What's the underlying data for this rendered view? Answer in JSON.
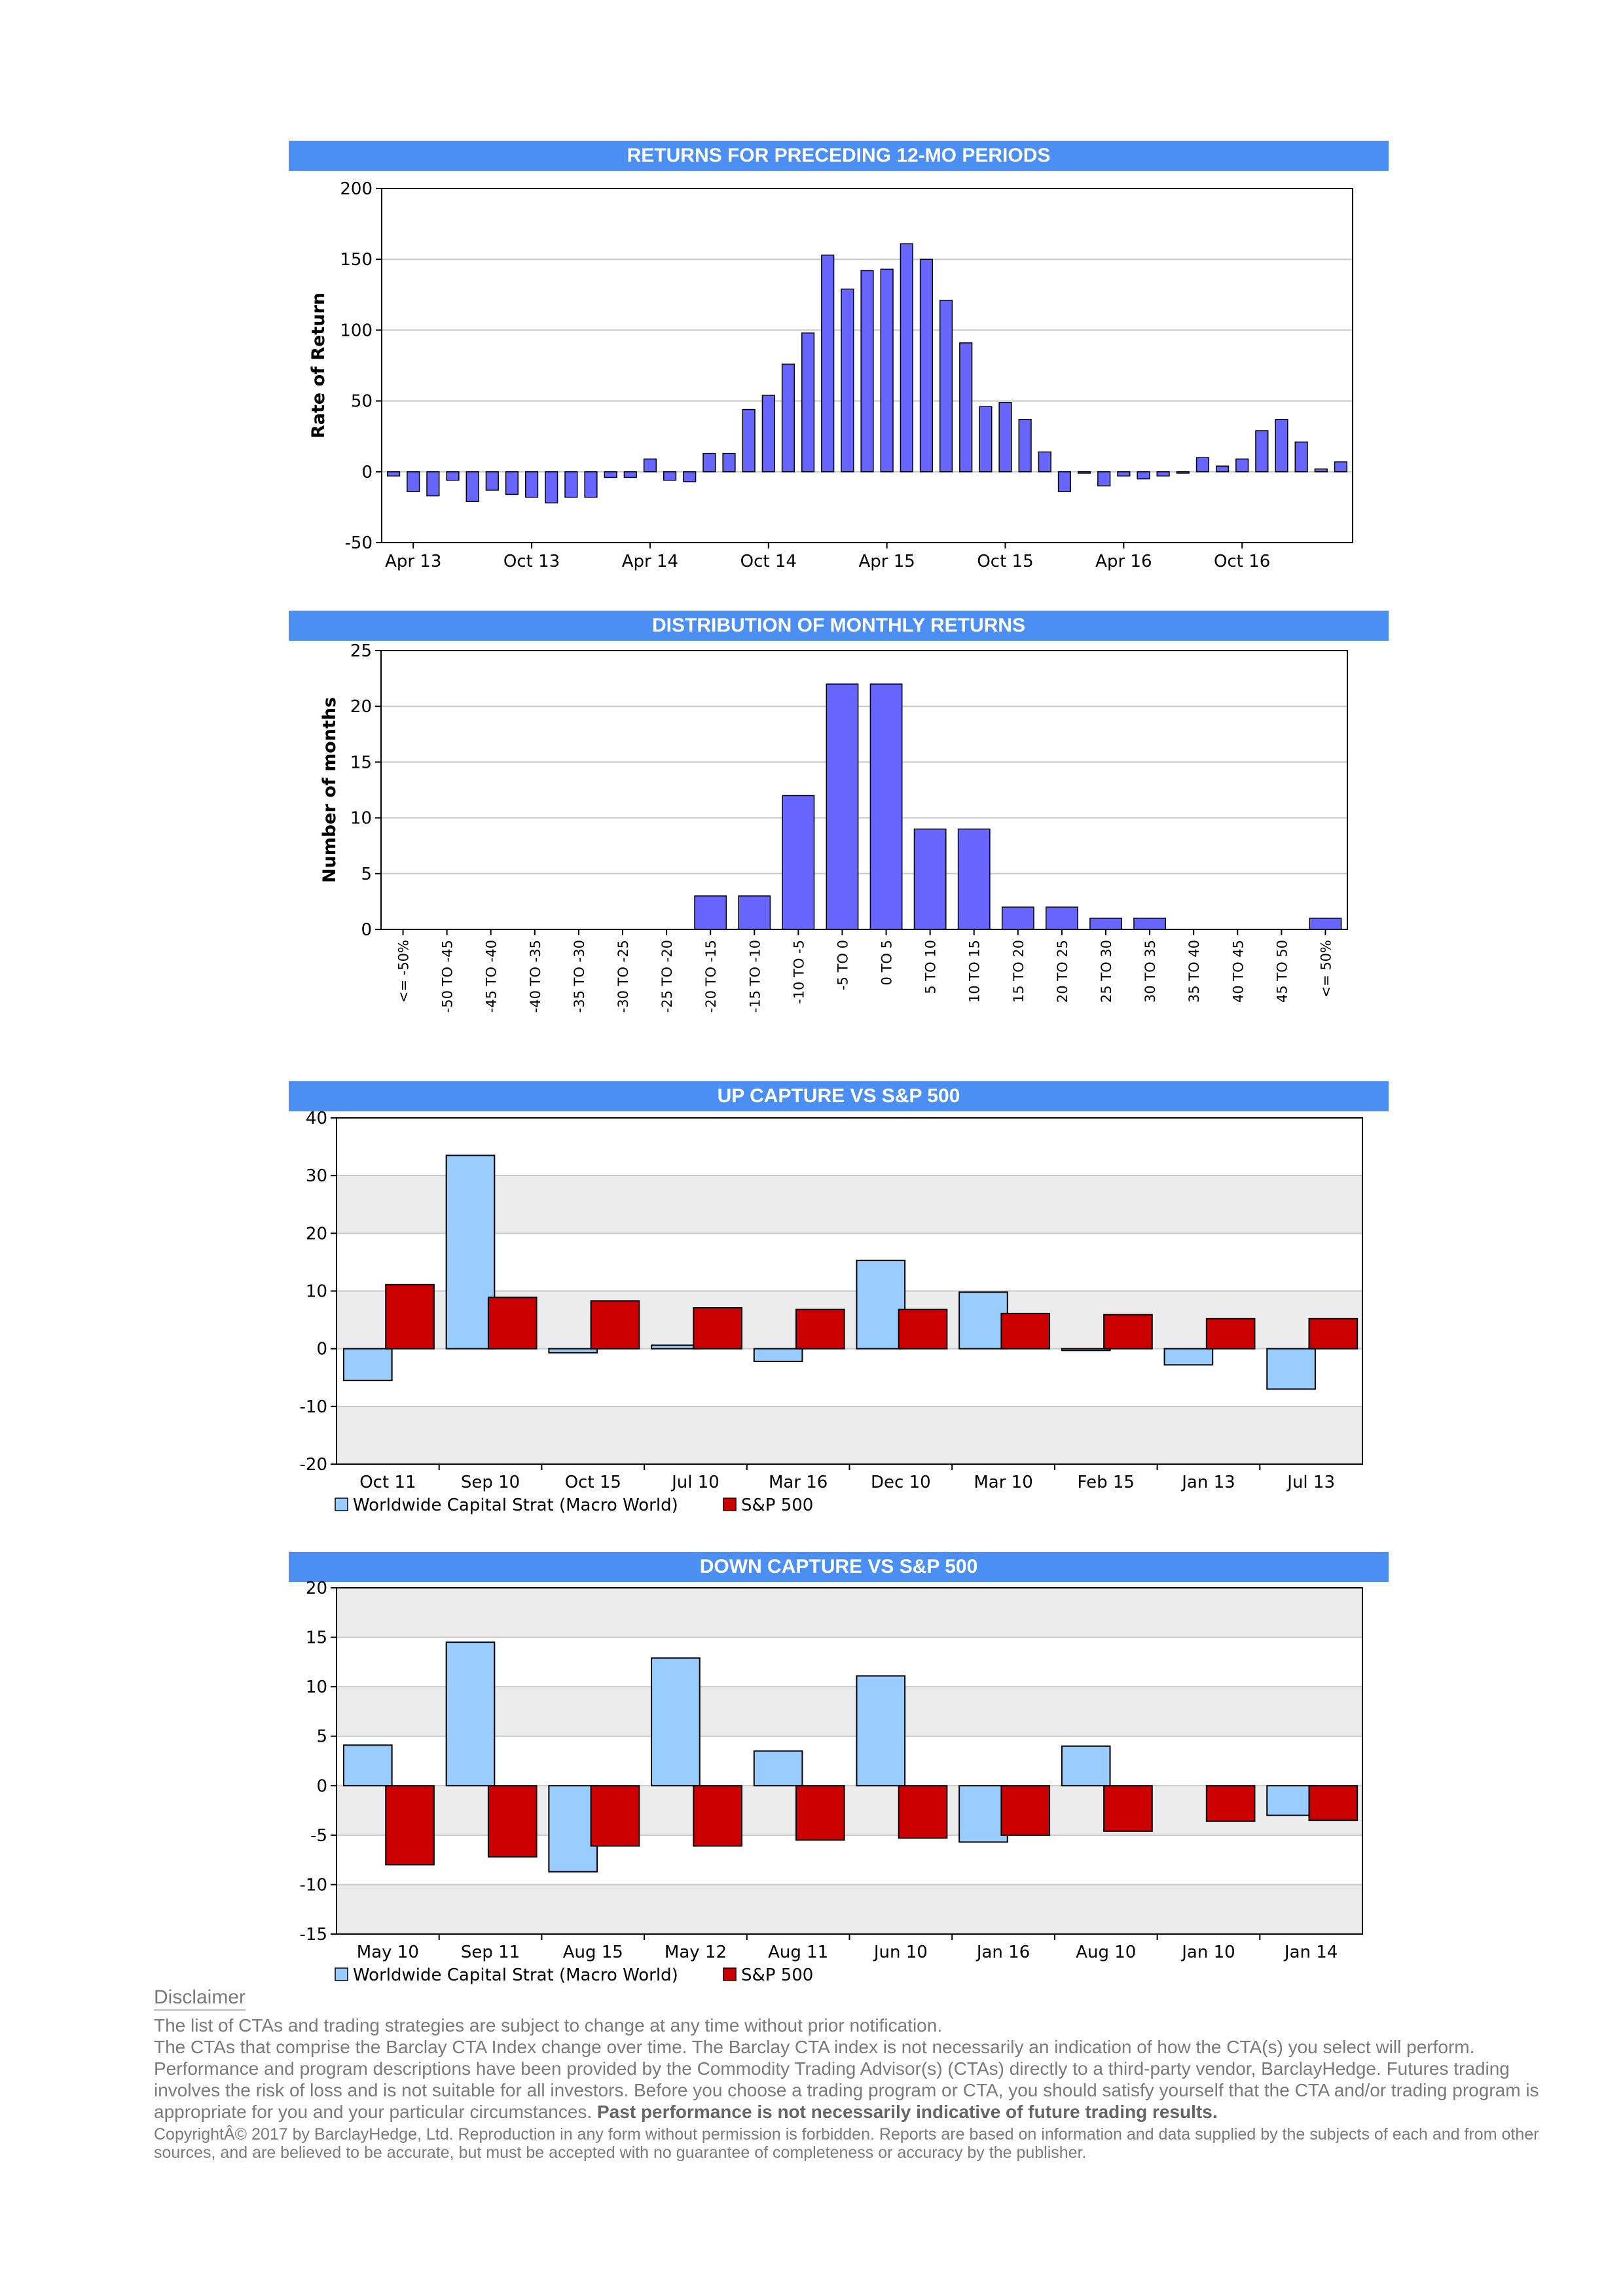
{
  "chart_data": [
    {
      "id": "rolling",
      "type": "bar",
      "title": "RETURNS FOR PRECEDING 12-MO PERIODS",
      "ylabel": "Rate of Return",
      "ylim": [
        -50,
        200
      ],
      "yticks": [
        -50,
        0,
        50,
        100,
        150,
        200
      ],
      "xticks": [
        "Apr 13",
        "Oct 13",
        "Apr 14",
        "Oct 14",
        "Apr 15",
        "Oct 15",
        "Apr 16",
        "Oct 16"
      ],
      "xtick_index": [
        1,
        7,
        13,
        19,
        25,
        31,
        37,
        43
      ],
      "grid": true,
      "color": "#6666ff",
      "values": [
        -3,
        -14,
        -17,
        -6,
        -21,
        -13,
        -16,
        -18,
        -22,
        -18,
        -18,
        -4,
        -4,
        9,
        -6,
        -7,
        13,
        13,
        44,
        54,
        76,
        98,
        153,
        129,
        142,
        143,
        161,
        150,
        121,
        91,
        46,
        49,
        37,
        14,
        -14,
        -1,
        -10,
        -3,
        -5,
        -3,
        -1,
        10,
        4,
        9,
        29,
        37,
        21,
        2,
        7
      ]
    },
    {
      "id": "distribution",
      "type": "bar",
      "title": "DISTRIBUTION OF MONTHLY RETURNS",
      "ylabel": "Number of months",
      "ylim": [
        0,
        25
      ],
      "yticks": [
        0,
        5,
        10,
        15,
        20,
        25
      ],
      "grid": true,
      "color": "#6666ff",
      "categories": [
        "<= -50%",
        "-50 TO -45",
        "-45 TO -40",
        "-40 TO -35",
        "-35 TO -30",
        "-30 TO -25",
        "-25 TO -20",
        "-20 TO -15",
        "-15 TO -10",
        "-10 TO -5",
        "-5 TO 0",
        "0 TO 5",
        "5 TO 10",
        "10 TO 15",
        "15 TO 20",
        "20 TO 25",
        "25 TO 30",
        "30 TO 35",
        "35 TO 40",
        "40 TO 45",
        "45 TO 50",
        "<= 50%"
      ],
      "values": [
        0,
        0,
        0,
        0,
        0,
        0,
        0,
        3,
        3,
        12,
        22,
        22,
        9,
        9,
        2,
        2,
        1,
        1,
        0,
        0,
        0,
        1
      ]
    },
    {
      "id": "up",
      "type": "bar",
      "title": "UP CAPTURE VS S&P 500",
      "ylim": [
        -20,
        40
      ],
      "yticks": [
        -20,
        -10,
        0,
        10,
        20,
        30,
        40
      ],
      "categories": [
        "Oct 11",
        "Sep 10",
        "Oct 15",
        "Jul 10",
        "Mar 16",
        "Dec 10",
        "Mar 10",
        "Feb 15",
        "Jan 13",
        "Jul 13"
      ],
      "series": [
        {
          "name": "Worldwide Capital Strat (Macro World)",
          "color": "#99ccff",
          "values": [
            -5.5,
            33.5,
            -0.7,
            0.6,
            -2.2,
            15.3,
            9.8,
            -0.3,
            -2.8,
            -7
          ]
        },
        {
          "name": "S&P 500",
          "color": "#cc0000",
          "values": [
            11.1,
            8.9,
            8.3,
            7.1,
            6.8,
            6.8,
            6.1,
            5.9,
            5.2,
            5.2
          ]
        }
      ],
      "legend": "bottom-left"
    },
    {
      "id": "down",
      "type": "bar",
      "title": "DOWN CAPTURE VS S&P 500",
      "ylim": [
        -15,
        20
      ],
      "yticks": [
        -15,
        -10,
        -5,
        0,
        5,
        10,
        15,
        20
      ],
      "categories": [
        "May 10",
        "Sep 11",
        "Aug 15",
        "May 12",
        "Aug 11",
        "Jun 10",
        "Jan 16",
        "Aug 10",
        "Jan 10",
        "Jan 14"
      ],
      "series": [
        {
          "name": "Worldwide Capital Strat (Macro World)",
          "color": "#99ccff",
          "values": [
            4.1,
            14.5,
            -8.7,
            12.9,
            3.5,
            11.1,
            -5.7,
            4.0,
            0,
            -3.0
          ]
        },
        {
          "name": "S&P 500",
          "color": "#cc0000",
          "values": [
            -8.0,
            -7.2,
            -6.1,
            -6.1,
            -5.5,
            -5.3,
            -5.0,
            -4.6,
            -3.6,
            -3.5
          ]
        }
      ],
      "legend": "bottom-left"
    }
  ],
  "disclaimer": {
    "title": "Disclaimer",
    "p1": "The list of CTAs and trading strategies are subject to change at any time without prior notification.",
    "p2": "The CTAs that comprise the Barclay CTA Index change over time.  The Barclay CTA index is not necessarily an indication of how the CTA(s) you select will perform.",
    "p3": "Performance and program descriptions have been provided by the Commodity Trading Advisor(s) (CTAs) directly to a third-party vendor, BarclayHedge. Futures trading involves the risk of loss and is not suitable for all investors.  Before you choose a trading program or CTA, you should satisfy yourself that the CTA and/or trading program is appropriate for you and your particular circumstances.",
    "p3_bold": "Past performance is not necessarily indicative of future trading results.",
    "copyright": "CopyrightÂ© 2017 by BarclayHedge, Ltd. Reproduction in any form without permission is forbidden. Reports are based on information and data supplied by the subjects of each and from other sources, and are believed to be accurate, but must be accepted with no guarantee of completeness or accuracy by the publisher."
  }
}
